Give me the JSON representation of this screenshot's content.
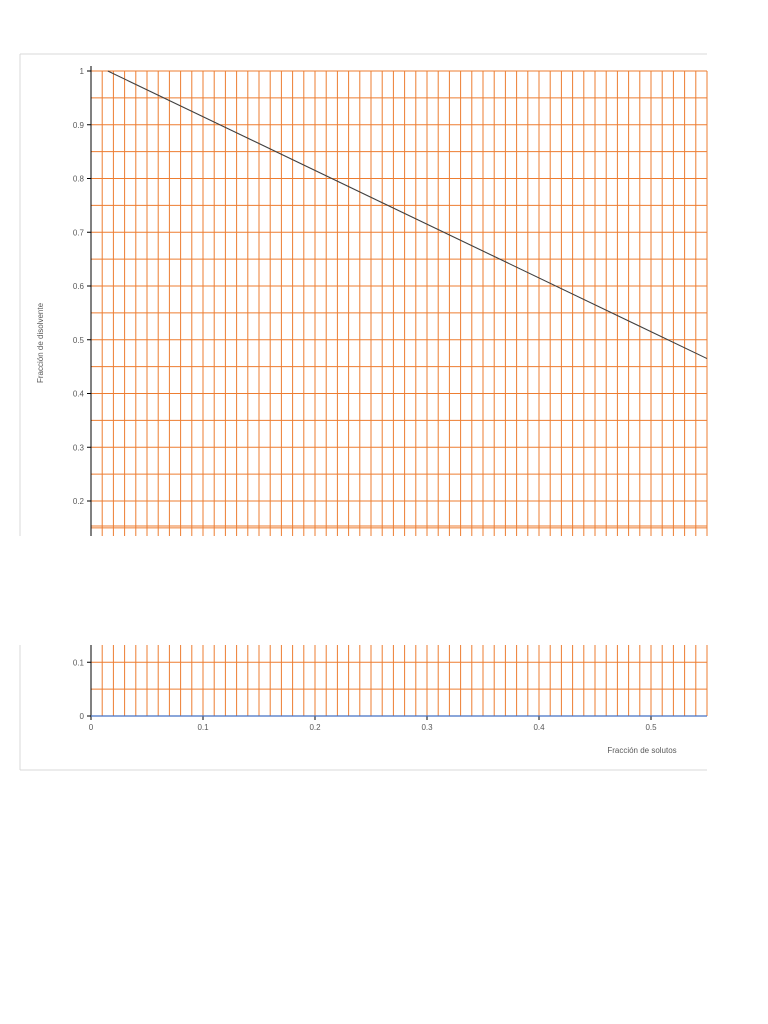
{
  "colors": {
    "grid": "#ed7d31",
    "line": "#404040",
    "baseline": "#4472c4",
    "frame": "#d9d9d9",
    "axis": "#000000",
    "text": "#595959"
  },
  "chart_data": {
    "type": "line",
    "title": "",
    "xlabel": "Fracción de solutos",
    "ylabel": "Fracción de disolvente",
    "xlim": [
      0,
      0.55
    ],
    "ylim": [
      0,
      1
    ],
    "x_ticks": [
      "0",
      "0.1",
      "0.2",
      "0.3",
      "0.4",
      "0.5"
    ],
    "y_ticks": [
      "0",
      "0.1",
      "0.2",
      "0.3",
      "0.4",
      "0.5",
      "0.6",
      "0.7",
      "0.8",
      "0.9",
      "1"
    ],
    "x_tick_values": [
      0,
      0.1,
      0.2,
      0.3,
      0.4,
      0.5
    ],
    "y_tick_values": [
      0,
      0.1,
      0.2,
      0.3,
      0.4,
      0.5,
      0.6,
      0.7,
      0.8,
      0.9,
      1
    ],
    "grid": {
      "major_x": 0.01,
      "major_y": 0.05
    },
    "y_axis_break": [
      0.12,
      0.14
    ],
    "legend": "none",
    "series": [
      {
        "x": [
          0.015,
          0.55
        ],
        "y": [
          1.0,
          0.465
        ]
      },
      {
        "x": [
          0,
          0.55
        ],
        "y": [
          0,
          0
        ]
      }
    ]
  }
}
